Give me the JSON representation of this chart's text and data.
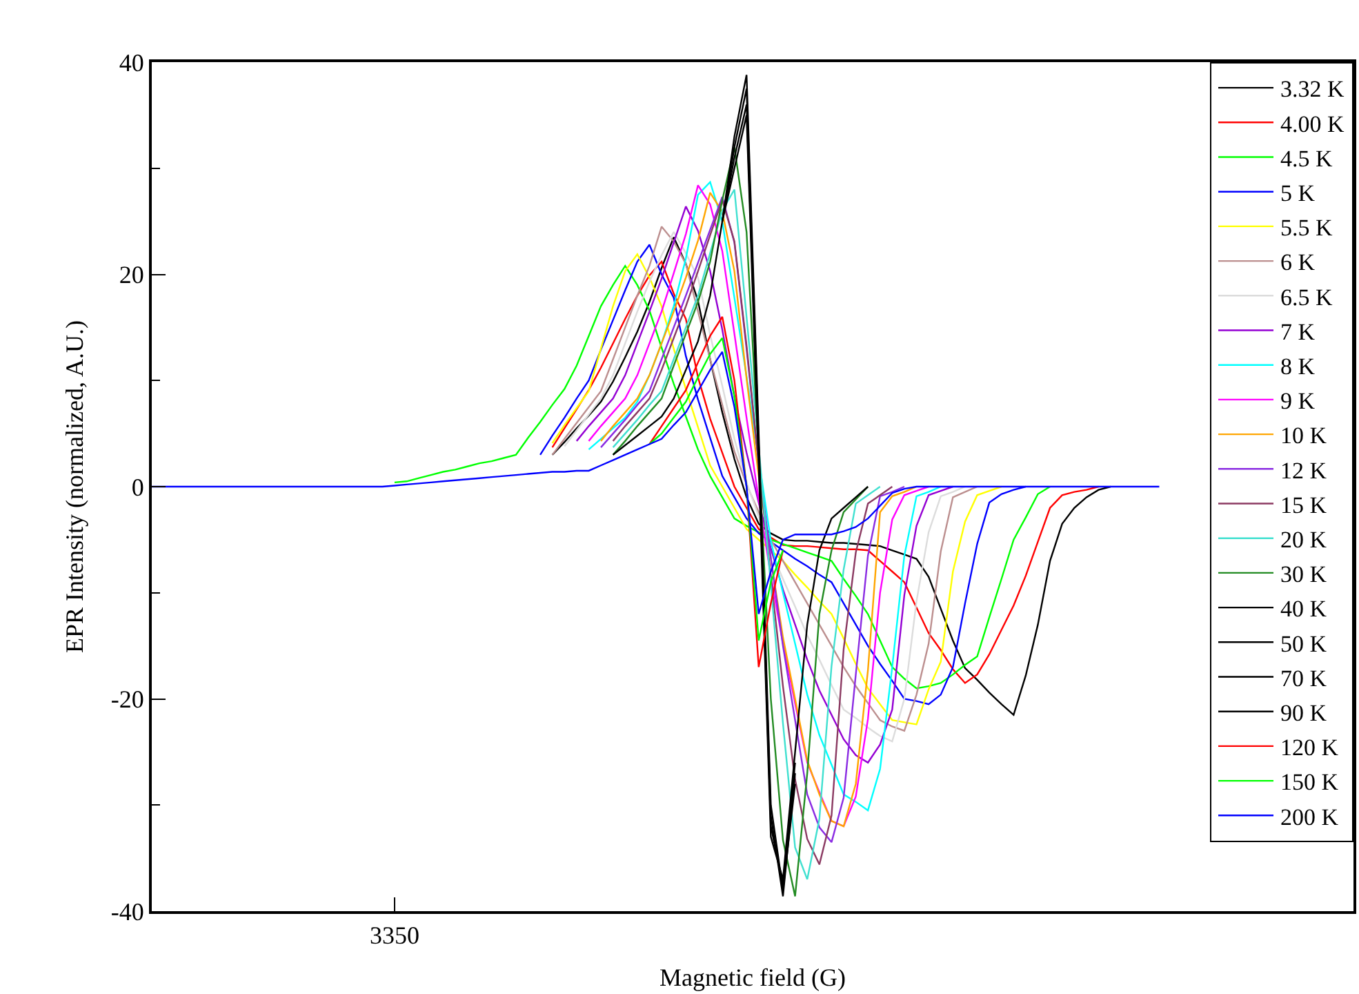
{
  "chart_data": {
    "type": "line",
    "xlabel": "Magnetic field (G)",
    "ylabel": "EPR Intensity (normalized, A.U.)",
    "categories": [
      null,
      null,
      null,
      null,
      null,
      null,
      null,
      null,
      null,
      null,
      null,
      null,
      null,
      null,
      null,
      null,
      null,
      null,
      null,
      null,
      "3350",
      null,
      null,
      null,
      null,
      null,
      null,
      null,
      null,
      null,
      null,
      null,
      null,
      null,
      null,
      null,
      null,
      null,
      null,
      null,
      null,
      null,
      null,
      null,
      null,
      null,
      null,
      null,
      null,
      null,
      null,
      null,
      null,
      null,
      null,
      null,
      null,
      null,
      null,
      null,
      null,
      null,
      null,
      null,
      null,
      null,
      null,
      null,
      null,
      null,
      null,
      null,
      null,
      null,
      null,
      null,
      null,
      null,
      null,
      null,
      null,
      null,
      null,
      null,
      null,
      null,
      null,
      null,
      null,
      null,
      null,
      null,
      null,
      null,
      null,
      null,
      null,
      null,
      null,
      null
    ],
    "ylim": [
      -40,
      40
    ],
    "yticks": [
      -40,
      {
        "value": -30,
        "label": null
      },
      -20,
      {
        "value": -10,
        "label": null
      },
      0,
      {
        "value": 10,
        "label": null
      },
      20,
      {
        "value": 30,
        "label": null
      },
      40
    ],
    "legend": "top right",
    "marker": "none",
    "line_style": "solid",
    "series": [
      {
        "name": "3.32 K",
        "color": "#000000",
        "values": [
          null,
          null,
          null,
          null,
          null,
          null,
          null,
          null,
          null,
          null,
          null,
          null,
          null,
          null,
          null,
          null,
          null,
          null,
          null,
          null,
          null,
          null,
          null,
          null,
          null,
          null,
          null,
          null,
          null,
          null,
          null,
          null,
          null,
          3,
          4.2,
          5.5,
          6.7,
          8,
          9.9,
          12.2,
          14.6,
          17.4,
          20.6,
          23.5,
          21,
          17.5,
          12,
          7,
          2.6,
          -1,
          -3.5,
          -4.4,
          -5,
          -5.1,
          -5.1,
          -5.2,
          -5.3,
          -5.3,
          -5.4,
          -5.5,
          -5.6,
          -6,
          -6.4,
          -6.8,
          -8.5,
          -11.5,
          -14.5,
          -17.1,
          -18.2,
          -19.4,
          -20.5,
          -21.5,
          -17.8,
          -13,
          -7,
          -3.5,
          -2,
          -1,
          -0.3,
          0,
          null,
          null,
          null,
          null,
          null,
          null,
          null,
          null,
          null,
          null,
          null,
          null,
          null,
          null,
          null,
          null,
          null,
          null,
          null,
          null
        ]
      },
      {
        "name": "4.00 K",
        "color": "#ff0000",
        "values": [
          null,
          null,
          null,
          null,
          null,
          null,
          null,
          null,
          null,
          null,
          null,
          null,
          null,
          null,
          null,
          null,
          null,
          null,
          null,
          null,
          null,
          null,
          null,
          null,
          null,
          null,
          null,
          null,
          null,
          null,
          null,
          null,
          null,
          3.7,
          5.5,
          7.3,
          9.1,
          11.2,
          13.5,
          15.8,
          18,
          19.9,
          21.2,
          18.2,
          15.8,
          10.3,
          6.4,
          3.2,
          0,
          -2,
          -4,
          -4.8,
          -5.5,
          -5.6,
          -5.6,
          -5.7,
          -5.8,
          -5.9,
          -5.9,
          -6,
          -7,
          -8,
          -9,
          -11.4,
          -13.8,
          -15.4,
          -17.2,
          -18.5,
          -17.7,
          -15.8,
          -13.5,
          -11.2,
          -8.4,
          -5.2,
          -2,
          -0.8,
          -0.5,
          -0.3,
          0,
          null,
          null,
          null,
          null,
          null,
          null,
          null,
          null,
          null,
          null,
          null,
          null,
          null,
          null,
          null,
          null,
          null,
          null,
          null,
          null,
          null
        ]
      },
      {
        "name": "4.5 K",
        "color": "#00ff00",
        "values": [
          null,
          null,
          null,
          null,
          null,
          null,
          null,
          null,
          null,
          null,
          null,
          null,
          null,
          null,
          null,
          null,
          null,
          null,
          null,
          null,
          0.4,
          0.5,
          0.8,
          1.1,
          1.4,
          1.6,
          1.9,
          2.2,
          2.4,
          2.7,
          3,
          4.6,
          6.1,
          7.7,
          9.2,
          11.4,
          14.2,
          17,
          19,
          20.8,
          19,
          16.6,
          13.1,
          9.7,
          6.6,
          3.5,
          1,
          -1,
          -3,
          -3.7,
          -4.3,
          -5,
          -5.4,
          -5.8,
          -6.2,
          -6.6,
          -7,
          -8.7,
          -10.3,
          -12,
          -14.5,
          -17,
          -18.1,
          -19,
          -18.8,
          -18.5,
          -17.7,
          -16.8,
          -16,
          -12.3,
          -8.7,
          -5,
          -2.9,
          -0.7,
          0,
          null,
          null,
          null,
          null,
          null,
          null,
          null,
          null,
          null,
          null,
          null,
          null,
          null,
          null,
          null,
          null,
          null,
          null,
          null,
          null,
          null,
          null,
          null,
          null,
          null
        ]
      },
      {
        "name": "5 K",
        "color": "#0000ff",
        "values": [
          null,
          null,
          null,
          null,
          null,
          null,
          null,
          null,
          null,
          null,
          null,
          null,
          null,
          null,
          null,
          null,
          null,
          null,
          null,
          null,
          null,
          null,
          null,
          null,
          null,
          null,
          null,
          null,
          null,
          null,
          null,
          null,
          3,
          4.8,
          6.5,
          8.3,
          10,
          12.9,
          15.7,
          18.5,
          21.2,
          22.8,
          20,
          17.8,
          12.3,
          8.2,
          4.6,
          1,
          -1,
          -3,
          -4.4,
          -5.2,
          -6,
          -6.8,
          -7.5,
          -8.3,
          -9,
          -11,
          -13,
          -15,
          -16.7,
          -18.3,
          -20,
          -20.2,
          -20.5,
          -19.6,
          -17,
          -11,
          -5.4,
          -1.5,
          -0.7,
          -0.3,
          0,
          null,
          null,
          null,
          null,
          null,
          null,
          null,
          null,
          null,
          null,
          null,
          null,
          null,
          null,
          null,
          null,
          null,
          null,
          null,
          null,
          null,
          null,
          null,
          null,
          null,
          null,
          null
        ]
      },
      {
        "name": "5.5 K",
        "color": "#ffff00",
        "values": [
          null,
          null,
          null,
          null,
          null,
          null,
          null,
          null,
          null,
          null,
          null,
          null,
          null,
          null,
          null,
          null,
          null,
          null,
          null,
          null,
          null,
          null,
          null,
          null,
          null,
          null,
          null,
          null,
          null,
          null,
          null,
          null,
          null,
          4.1,
          5.8,
          7.4,
          9,
          13,
          17,
          20.3,
          21.9,
          19.7,
          17,
          13,
          9.2,
          5.6,
          2,
          0,
          -2,
          -4,
          -5,
          -6,
          -7,
          -8.3,
          -9.5,
          -10.8,
          -12,
          -14.3,
          -16.7,
          -19,
          -20.5,
          -22,
          -22.2,
          -22.4,
          -19.1,
          -16.5,
          -8,
          -3.3,
          -0.8,
          -0.4,
          0,
          null,
          null,
          null,
          null,
          null,
          null,
          null,
          null,
          null,
          null,
          null,
          null,
          null,
          null,
          null,
          null,
          null,
          null,
          null,
          null,
          null,
          null,
          null,
          null,
          null,
          null,
          null,
          null,
          null
        ]
      },
      {
        "name": "6 K",
        "color": "#bc8f8f",
        "values": [
          null,
          null,
          null,
          null,
          null,
          null,
          null,
          null,
          null,
          null,
          null,
          null,
          null,
          null,
          null,
          null,
          null,
          null,
          null,
          null,
          null,
          null,
          null,
          null,
          null,
          null,
          null,
          null,
          null,
          null,
          null,
          null,
          null,
          3,
          4.5,
          6,
          7.5,
          9,
          12,
          15,
          18,
          20.8,
          24.5,
          23.1,
          21,
          16.5,
          12,
          7.7,
          3.3,
          0.2,
          -2.4,
          -5,
          -7,
          -9,
          -11,
          -13,
          -15,
          -17,
          -18.8,
          -20.4,
          -22,
          -22.6,
          -23,
          -19.6,
          -14.8,
          -6.1,
          -1,
          -0.5,
          0,
          null,
          null,
          null,
          null,
          null,
          null,
          null,
          null,
          null,
          null,
          null,
          null,
          null,
          null,
          null,
          null,
          null,
          null,
          null,
          null,
          null,
          null,
          null,
          null,
          null,
          null,
          null,
          null,
          null,
          null,
          null
        ]
      },
      {
        "name": "6.5 K",
        "color": "#dcdcdc",
        "values": [
          null,
          null,
          null,
          null,
          null,
          null,
          null,
          null,
          null,
          null,
          null,
          null,
          null,
          null,
          null,
          null,
          null,
          null,
          null,
          null,
          null,
          null,
          null,
          null,
          null,
          null,
          null,
          null,
          null,
          null,
          null,
          null,
          null,
          null,
          3.8,
          5.3,
          6.8,
          8.3,
          10.5,
          13.5,
          16.5,
          19.3,
          21.8,
          24,
          22,
          19.7,
          14.3,
          9.5,
          4.5,
          0.4,
          -2.8,
          -6,
          -8.7,
          -11.3,
          -14,
          -16.3,
          -18.7,
          -21,
          -21.8,
          -22.7,
          -23.5,
          -24,
          -20,
          -10.8,
          -4.3,
          -0.9,
          -0.5,
          0,
          null,
          null,
          null,
          null,
          null,
          null,
          null,
          null,
          null,
          null,
          null,
          null,
          null,
          null,
          null,
          null,
          null,
          null,
          null,
          null,
          null,
          null,
          null,
          null,
          null,
          null,
          null,
          null,
          null,
          null,
          null,
          null
        ]
      },
      {
        "name": "7 K",
        "color": "#9400d3",
        "values": [
          null,
          null,
          null,
          null,
          null,
          null,
          null,
          null,
          null,
          null,
          null,
          null,
          null,
          null,
          null,
          null,
          null,
          null,
          null,
          null,
          null,
          null,
          null,
          null,
          null,
          null,
          null,
          null,
          null,
          null,
          null,
          null,
          null,
          null,
          null,
          4.3,
          5.7,
          7,
          8.3,
          10.5,
          13.5,
          16.5,
          19.6,
          23,
          26.4,
          24.1,
          20.3,
          14.8,
          8.5,
          3.2,
          -1.5,
          -5.8,
          -9.7,
          -13,
          -16.3,
          -19.2,
          -21.5,
          -23.8,
          -25.3,
          -26,
          -24.3,
          -21,
          -10.2,
          -3.7,
          -0.8,
          -0.4,
          0,
          null,
          null,
          null,
          null,
          null,
          null,
          null,
          null,
          null,
          null,
          null,
          null,
          null,
          null,
          null,
          null,
          null,
          null,
          null,
          null,
          null,
          null,
          null,
          null,
          null,
          null,
          null,
          null,
          null,
          null,
          null,
          null,
          null
        ]
      },
      {
        "name": "8 K",
        "color": "#00ffff",
        "values": [
          null,
          null,
          null,
          null,
          null,
          null,
          null,
          null,
          null,
          null,
          null,
          null,
          null,
          null,
          null,
          null,
          null,
          null,
          null,
          null,
          null,
          null,
          null,
          null,
          null,
          null,
          null,
          null,
          null,
          null,
          null,
          null,
          null,
          null,
          null,
          null,
          3.5,
          4.5,
          5.5,
          6.5,
          8,
          10.5,
          13.5,
          17,
          21.5,
          27.5,
          28.7,
          25,
          17.8,
          10.4,
          2.6,
          -5.1,
          -10,
          -14.8,
          -19.6,
          -23.4,
          -26.2,
          -29,
          -29.7,
          -30.5,
          -26.6,
          -17,
          -6.5,
          -0.9,
          -0.5,
          0,
          null,
          null,
          null,
          null,
          null,
          null,
          null,
          null,
          null,
          null,
          null,
          null,
          null,
          null,
          null,
          null,
          null,
          null,
          null,
          null,
          null,
          null,
          null,
          null,
          null,
          null,
          null,
          null,
          null,
          null,
          null,
          null,
          null,
          null
        ]
      },
      {
        "name": "9 K",
        "color": "#ff00ff",
        "values": [
          null,
          null,
          null,
          null,
          null,
          null,
          null,
          null,
          null,
          null,
          null,
          null,
          null,
          null,
          null,
          null,
          null,
          null,
          null,
          null,
          null,
          null,
          null,
          null,
          null,
          null,
          null,
          null,
          null,
          null,
          null,
          null,
          null,
          null,
          null,
          null,
          4.3,
          5.7,
          7,
          8.3,
          10.5,
          13.5,
          16.5,
          20.1,
          23.8,
          28.4,
          26.6,
          22.2,
          14.4,
          6.5,
          -1.2,
          -8.4,
          -14.8,
          -20.4,
          -26,
          -28.8,
          -31.5,
          -32,
          -29.2,
          -21.9,
          -10,
          -3.1,
          -0.8,
          -0.4,
          0,
          null,
          null,
          null,
          null,
          null,
          null,
          null,
          null,
          null,
          null,
          null,
          null,
          null,
          null,
          null,
          null,
          null,
          null,
          null,
          null,
          null,
          null,
          null,
          null,
          null,
          null,
          null,
          null,
          null,
          null,
          null,
          null,
          null,
          null,
          null
        ]
      },
      {
        "name": "10 K",
        "color": "#ffa500",
        "values": [
          null,
          null,
          null,
          null,
          null,
          null,
          null,
          null,
          null,
          null,
          null,
          null,
          null,
          null,
          null,
          null,
          null,
          null,
          null,
          null,
          null,
          null,
          null,
          null,
          null,
          null,
          null,
          null,
          null,
          null,
          null,
          null,
          null,
          null,
          null,
          null,
          null,
          4.3,
          5.7,
          7,
          8.3,
          10.5,
          13.5,
          16.5,
          19.7,
          23.2,
          27.7,
          25.9,
          20.3,
          10.2,
          1,
          -6.8,
          -14.2,
          -20,
          -25.8,
          -29,
          -31.5,
          -32,
          -28,
          -17.3,
          -2.4,
          -0.9,
          -0.5,
          0,
          null,
          null,
          null,
          null,
          null,
          null,
          null,
          null,
          null,
          null,
          null,
          null,
          null,
          null,
          null,
          null,
          null,
          null,
          null,
          null,
          null,
          null,
          null,
          null,
          null,
          null,
          null,
          null,
          null,
          null,
          null,
          null,
          null,
          null,
          null,
          null
        ]
      },
      {
        "name": "12 K",
        "color": "#8a2be2",
        "values": [
          null,
          null,
          null,
          null,
          null,
          null,
          null,
          null,
          null,
          null,
          null,
          null,
          null,
          null,
          null,
          null,
          null,
          null,
          null,
          null,
          null,
          null,
          null,
          null,
          null,
          null,
          null,
          null,
          null,
          null,
          null,
          null,
          null,
          null,
          null,
          null,
          null,
          3.7,
          5,
          6.3,
          7.7,
          9,
          12,
          15,
          18,
          21.1,
          24.2,
          27.3,
          23,
          13,
          2.2,
          -6.7,
          -15,
          -22,
          -29,
          -32.1,
          -33.5,
          -29.3,
          -17.7,
          -6.5,
          -0.9,
          -0.5,
          0,
          null,
          null,
          null,
          null,
          null,
          null,
          null,
          null,
          null,
          null,
          null,
          null,
          null,
          null,
          null,
          null,
          null,
          null,
          null,
          null,
          null,
          null,
          null,
          null,
          null,
          null,
          null,
          null,
          null,
          null,
          null,
          null,
          null,
          null,
          null,
          null,
          null
        ]
      },
      {
        "name": "15 K",
        "color": "#8b3a62",
        "values": [
          null,
          null,
          null,
          null,
          null,
          null,
          null,
          null,
          null,
          null,
          null,
          null,
          null,
          null,
          null,
          null,
          null,
          null,
          null,
          null,
          null,
          null,
          null,
          null,
          null,
          null,
          null,
          null,
          null,
          null,
          null,
          null,
          null,
          null,
          null,
          null,
          null,
          null,
          4.3,
          5.7,
          7,
          8.3,
          11,
          14,
          17,
          20.3,
          23.7,
          27,
          23.1,
          13.3,
          2.2,
          -8.5,
          -18.8,
          -27.6,
          -33.2,
          -35.6,
          -31,
          -15.3,
          -6.2,
          -1.6,
          -0.8,
          0,
          null,
          null,
          null,
          null,
          null,
          null,
          null,
          null,
          null,
          null,
          null,
          null,
          null,
          null,
          null,
          null,
          null,
          null,
          null,
          null,
          null,
          null,
          null,
          null,
          null,
          null,
          null,
          null,
          null,
          null,
          null,
          null,
          null,
          null,
          null,
          null,
          null,
          null
        ]
      },
      {
        "name": "20 K",
        "color": "#40e0d0",
        "values": [
          null,
          null,
          null,
          null,
          null,
          null,
          null,
          null,
          null,
          null,
          null,
          null,
          null,
          null,
          null,
          null,
          null,
          null,
          null,
          null,
          null,
          null,
          null,
          null,
          null,
          null,
          null,
          null,
          null,
          null,
          null,
          null,
          null,
          null,
          null,
          null,
          null,
          null,
          3.7,
          5,
          6.3,
          7.7,
          9,
          12,
          15,
          18,
          22,
          26,
          28,
          16,
          3.8,
          -9.3,
          -22.3,
          -34,
          -37,
          -31.3,
          -16.9,
          -7.8,
          -1.6,
          -0.8,
          0,
          null,
          null,
          null,
          null,
          null,
          null,
          null,
          null,
          null,
          null,
          null,
          null,
          null,
          null,
          null,
          null,
          null,
          null,
          null,
          null,
          null,
          null,
          null,
          null,
          null,
          null,
          null,
          null,
          null,
          null,
          null,
          null,
          null,
          null,
          null,
          null,
          null,
          null,
          null
        ]
      },
      {
        "name": "30 K",
        "color": "#228b22",
        "values": [
          null,
          null,
          null,
          null,
          null,
          null,
          null,
          null,
          null,
          null,
          null,
          null,
          null,
          null,
          null,
          null,
          null,
          null,
          null,
          null,
          null,
          null,
          null,
          null,
          null,
          null,
          null,
          null,
          null,
          null,
          null,
          null,
          null,
          null,
          null,
          null,
          null,
          null,
          3,
          4.3,
          5.7,
          7,
          8.3,
          11.4,
          14.4,
          17.4,
          21.2,
          27,
          32,
          24,
          3,
          -20,
          -33.3,
          -38.6,
          -27,
          -12,
          -6,
          -2.4,
          -1.2,
          0,
          null,
          null,
          null,
          null,
          null,
          null,
          null,
          null,
          null,
          null,
          null,
          null,
          null,
          null,
          null,
          null,
          null,
          null,
          null,
          null,
          null,
          null,
          null,
          null,
          null,
          null,
          null,
          null,
          null,
          null,
          null,
          null,
          null,
          null,
          null,
          null,
          null,
          null,
          null,
          null
        ]
      },
      {
        "name": "40 K",
        "color": "#000000",
        "values": [
          null,
          null,
          null,
          null,
          null,
          null,
          null,
          null,
          null,
          null,
          null,
          null,
          null,
          null,
          null,
          null,
          null,
          null,
          null,
          null,
          null,
          null,
          null,
          null,
          null,
          null,
          null,
          null,
          null,
          null,
          null,
          null,
          null,
          null,
          null,
          null,
          null,
          null,
          null,
          null,
          null,
          null,
          null,
          null,
          null,
          null,
          null,
          25,
          33,
          38.8,
          5,
          -30,
          -38,
          -28,
          null,
          null,
          null,
          null,
          null,
          null,
          null,
          null,
          null,
          null,
          null,
          null,
          null,
          null,
          null,
          null,
          null,
          null,
          null,
          null,
          null,
          null,
          null,
          null,
          null,
          null,
          null,
          null,
          null,
          null,
          null,
          null,
          null,
          null,
          null,
          null,
          null,
          null,
          null,
          null,
          null,
          null,
          null,
          null,
          null,
          null
        ]
      },
      {
        "name": "50 K",
        "color": "#000000",
        "values": [
          null,
          null,
          null,
          null,
          null,
          null,
          null,
          null,
          null,
          null,
          null,
          null,
          null,
          null,
          null,
          null,
          null,
          null,
          null,
          null,
          null,
          null,
          null,
          null,
          null,
          null,
          null,
          null,
          null,
          null,
          null,
          null,
          null,
          null,
          null,
          null,
          null,
          null,
          null,
          null,
          null,
          null,
          null,
          null,
          null,
          null,
          null,
          25,
          32,
          37.5,
          4,
          -31,
          -38.6,
          -27,
          null,
          null,
          null,
          null,
          null,
          null,
          null,
          null,
          null,
          null,
          null,
          null,
          null,
          null,
          null,
          null,
          null,
          null,
          null,
          null,
          null,
          null,
          null,
          null,
          null,
          null,
          null,
          null,
          null,
          null,
          null,
          null,
          null,
          null,
          null,
          null,
          null,
          null,
          null,
          null,
          null,
          null,
          null,
          null,
          null,
          null
        ]
      },
      {
        "name": "70 K",
        "color": "#000000",
        "values": [
          null,
          null,
          null,
          null,
          null,
          null,
          null,
          null,
          null,
          null,
          null,
          null,
          null,
          null,
          null,
          null,
          null,
          null,
          null,
          null,
          null,
          null,
          null,
          null,
          null,
          null,
          null,
          null,
          null,
          null,
          null,
          null,
          null,
          null,
          null,
          null,
          null,
          null,
          null,
          null,
          null,
          null,
          null,
          null,
          null,
          null,
          null,
          25,
          31,
          36,
          3,
          -32,
          -37.5,
          -26,
          null,
          null,
          null,
          null,
          null,
          null,
          null,
          null,
          null,
          null,
          null,
          null,
          null,
          null,
          null,
          null,
          null,
          null,
          null,
          null,
          null,
          null,
          null,
          null,
          null,
          null,
          null,
          null,
          null,
          null,
          null,
          null,
          null,
          null,
          null,
          null,
          null,
          null,
          null,
          null,
          null,
          null,
          null,
          null,
          null,
          null
        ]
      },
      {
        "name": "90 K",
        "color": "#000000",
        "values": [
          null,
          null,
          null,
          null,
          null,
          null,
          null,
          null,
          null,
          null,
          null,
          null,
          null,
          null,
          null,
          null,
          null,
          null,
          null,
          null,
          null,
          null,
          null,
          null,
          null,
          null,
          null,
          null,
          null,
          null,
          null,
          null,
          null,
          null,
          null,
          null,
          null,
          null,
          3,
          3.9,
          4.8,
          5.7,
          6.6,
          8.3,
          11,
          13.7,
          18,
          25,
          30,
          35,
          2,
          -33,
          -37,
          -25,
          -13,
          -6,
          -3,
          -2,
          -1,
          0,
          null,
          null,
          null,
          null,
          null,
          null,
          null,
          null,
          null,
          null,
          null,
          null,
          null,
          null,
          null,
          null,
          null,
          null,
          null,
          null,
          null,
          null,
          null,
          null,
          null,
          null,
          null,
          null,
          null,
          null,
          null,
          null,
          null,
          null,
          null,
          null,
          null,
          null,
          null,
          null
        ]
      },
      {
        "name": "120 K",
        "color": "#ff0000",
        "values": [
          null,
          null,
          null,
          null,
          null,
          null,
          null,
          null,
          null,
          null,
          null,
          null,
          null,
          null,
          null,
          null,
          null,
          null,
          null,
          null,
          null,
          null,
          null,
          null,
          null,
          null,
          null,
          null,
          null,
          null,
          null,
          null,
          null,
          null,
          null,
          null,
          null,
          null,
          null,
          null,
          null,
          4,
          5.7,
          7.4,
          9.1,
          11.7,
          14.2,
          16,
          10,
          0,
          -17,
          -11,
          -6,
          null,
          null,
          null,
          null,
          null,
          null,
          null,
          null,
          null,
          null,
          null,
          null,
          null,
          null,
          null,
          null,
          null,
          null,
          null,
          null,
          null,
          null,
          null,
          null,
          null,
          null,
          null,
          null,
          null,
          null,
          null,
          null,
          null,
          null,
          null,
          null,
          null,
          null,
          null,
          null,
          null,
          null,
          null,
          null,
          null,
          null,
          null
        ]
      },
      {
        "name": "150 K",
        "color": "#00ff00",
        "values": [
          null,
          null,
          null,
          null,
          null,
          null,
          null,
          null,
          null,
          null,
          null,
          null,
          null,
          null,
          null,
          null,
          null,
          null,
          null,
          null,
          null,
          null,
          null,
          null,
          null,
          null,
          null,
          null,
          null,
          null,
          null,
          null,
          null,
          null,
          null,
          null,
          null,
          null,
          null,
          null,
          null,
          4,
          5,
          6.5,
          8,
          10.3,
          12.5,
          14,
          8.5,
          0,
          -14.5,
          -9,
          -6,
          null,
          null,
          null,
          null,
          null,
          null,
          null,
          null,
          null,
          null,
          null,
          null,
          null,
          null,
          null,
          null,
          null,
          null,
          null,
          null,
          null,
          null,
          null,
          null,
          null,
          null,
          null,
          null,
          null,
          null,
          null,
          null,
          null,
          null,
          null,
          null,
          null,
          null,
          null,
          null,
          null,
          null,
          null,
          null,
          null,
          null,
          null
        ]
      },
      {
        "name": "200 K",
        "color": "#0000ff",
        "values": [
          0,
          0,
          0,
          0,
          0,
          0,
          0,
          0,
          0,
          0,
          0,
          0,
          0,
          0,
          0,
          0,
          0,
          0,
          0,
          0,
          0.1,
          0.2,
          0.3,
          0.4,
          0.5,
          0.6,
          0.7,
          0.8,
          0.9,
          1,
          1.1,
          1.2,
          1.3,
          1.4,
          1.4,
          1.5,
          1.5,
          2,
          2.5,
          3,
          3.5,
          4,
          4.5,
          5.8,
          7,
          9,
          11,
          12.7,
          7.5,
          0,
          -12,
          -8,
          -5,
          -4.5,
          -4.5,
          -4.5,
          -4.5,
          -4.2,
          -3.8,
          -3,
          -1.8,
          -0.6,
          -0.2,
          0,
          0,
          0,
          0,
          0,
          0,
          0,
          0,
          0,
          0,
          0,
          0,
          0,
          0,
          0,
          0,
          0,
          0,
          0,
          0,
          0,
          null,
          null,
          null,
          null,
          null,
          null,
          null,
          null,
          null,
          null,
          null,
          null,
          null,
          null,
          null,
          null
        ]
      }
    ]
  }
}
